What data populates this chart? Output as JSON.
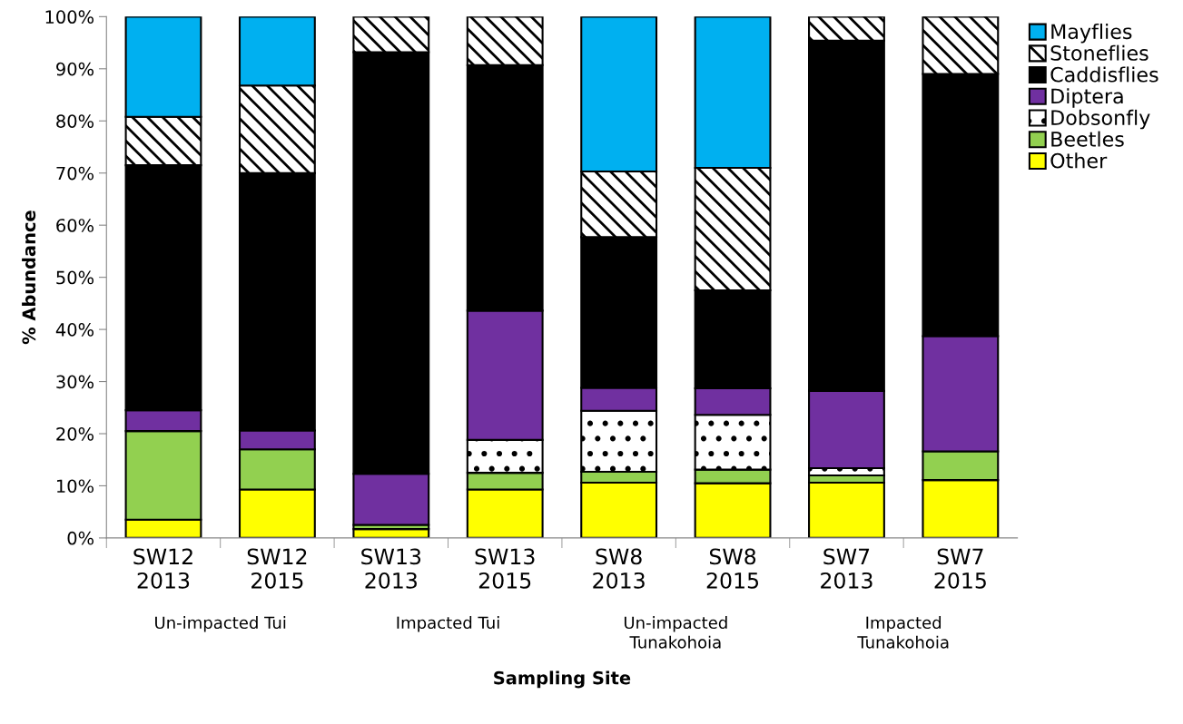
{
  "chart_data": {
    "type": "bar",
    "stacked": true,
    "xlabel": "Sampling Site",
    "ylabel": "% Abundance",
    "categories": [
      "SW12\n2013",
      "SW12\n2015",
      "SW13\n2013",
      "SW13\n2015",
      "SW8\n2013",
      "SW8\n2015",
      "SW7\n2013",
      "SW7\n2015"
    ],
    "series": [
      {
        "name": "Other",
        "color": "#ffff00",
        "values": [
          3.5,
          9.3,
          1.7,
          9.3,
          10.6,
          10.5,
          10.6,
          11.1
        ]
      },
      {
        "name": "Beetles",
        "color": "#92d050",
        "values": [
          17.0,
          7.7,
          0.8,
          3.2,
          2.1,
          2.6,
          1.4,
          5.5
        ]
      },
      {
        "name": "Dobsonfly",
        "color": "#ffffff",
        "values": [
          0,
          0,
          0,
          6.3,
          11.7,
          10.5,
          1.4,
          0
        ]
      },
      {
        "name": "Diptera",
        "color": "#7030a0",
        "values": [
          4.0,
          3.6,
          9.8,
          24.8,
          4.4,
          5.1,
          14.8,
          22.1
        ]
      },
      {
        "name": "Caddisflies",
        "color": "#000000",
        "values": [
          47.0,
          49.4,
          80.9,
          47.1,
          28.9,
          18.8,
          67.2,
          50.3
        ]
      },
      {
        "name": "Stoneflies",
        "color": "#ffffff",
        "values": [
          9.3,
          16.8,
          6.8,
          9.3,
          12.6,
          23.5,
          4.6,
          11.0
        ]
      },
      {
        "name": "Mayflies",
        "color": "#00b0f0",
        "values": [
          19.2,
          13.2,
          0,
          0,
          29.7,
          29.0,
          0,
          0
        ]
      }
    ],
    "ylim": [
      0,
      100
    ],
    "yticks": [
      {
        "value": 0,
        "label": "0%"
      },
      {
        "value": 10,
        "label": "10%"
      },
      {
        "value": 20,
        "label": "20%"
      },
      {
        "value": 30,
        "label": "30%"
      },
      {
        "value": 40,
        "label": "40%"
      },
      {
        "value": 50,
        "label": "50%"
      },
      {
        "value": 60,
        "label": "60%"
      },
      {
        "value": 70,
        "label": "70%"
      },
      {
        "value": 80,
        "label": "80%"
      },
      {
        "value": 90,
        "label": "90%"
      },
      {
        "value": 100,
        "label": "100%"
      }
    ],
    "grid": false,
    "legend": "top right",
    "annotations": [
      "Un-impacted Tui",
      "Impacted Tui",
      "Un-impacted\nTunakohoia",
      "Impacted\nTunakohoia"
    ]
  }
}
